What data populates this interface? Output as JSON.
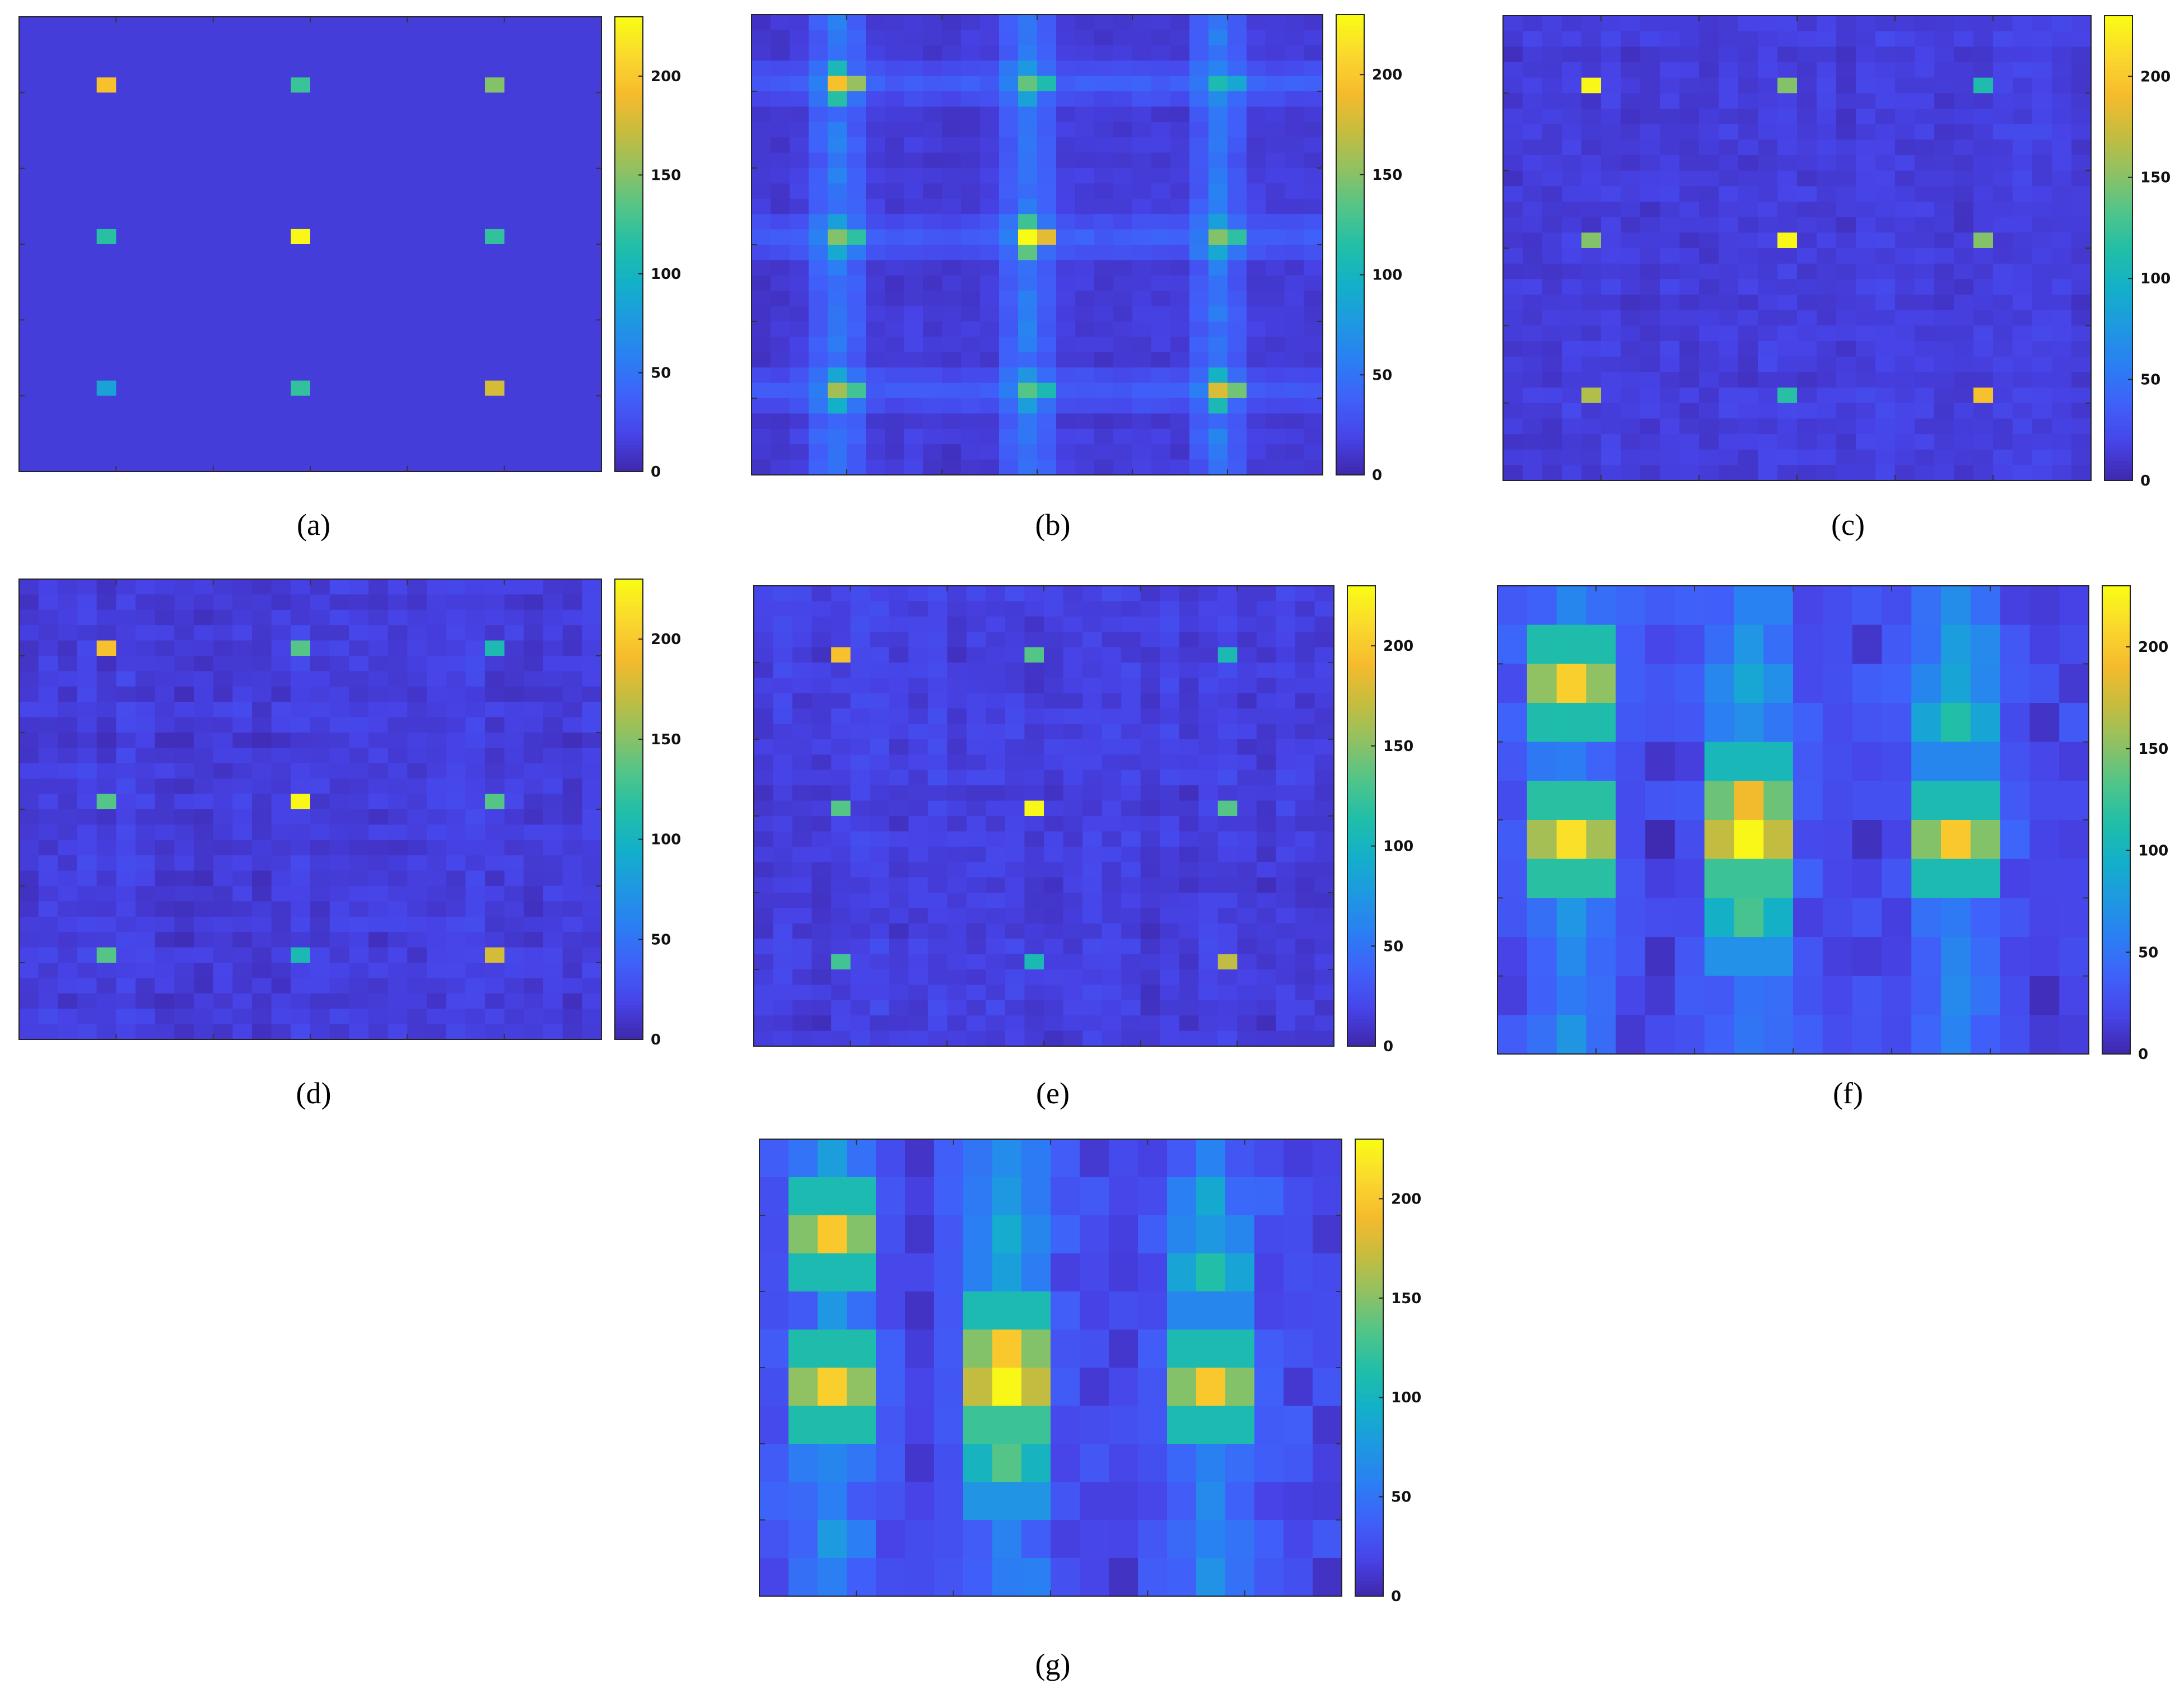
{
  "figure": {
    "colorbar_ticks": [
      "0",
      "50",
      "100",
      "150",
      "200"
    ],
    "colormap": [
      "#3e26a8",
      "#4743e7",
      "#4060fa",
      "#2b7ef3",
      "#1f98e2",
      "#13b0c9",
      "#21bea8",
      "#51c589",
      "#8fc163",
      "#c6bc3e",
      "#f6bb2d",
      "#fad82e",
      "#f9fb15"
    ]
  },
  "chart_data": [
    {
      "id": "a",
      "caption": "(a)",
      "type": "heatmap",
      "vmin": 0,
      "vmax": 230,
      "rows": 30,
      "cols": 30,
      "background": 15,
      "noise": 0,
      "structure": "none",
      "peaks": [
        [
          4,
          4,
          195
        ],
        [
          4,
          14,
          125
        ],
        [
          4,
          24,
          150
        ],
        [
          14,
          4,
          118
        ],
        [
          14,
          14,
          228
        ],
        [
          14,
          24,
          122
        ],
        [
          24,
          4,
          85
        ],
        [
          24,
          14,
          122
        ],
        [
          24,
          24,
          178
        ]
      ],
      "colorbar_ticks": [
        "0",
        "50",
        "100",
        "150",
        "200"
      ]
    },
    {
      "id": "b",
      "caption": "(b)",
      "type": "heatmap",
      "vmin": 0,
      "vmax": 230,
      "rows": 30,
      "cols": 30,
      "background": 14,
      "noise": 8,
      "structure": "cross",
      "peaks": [
        [
          4,
          4,
          195
        ],
        [
          4,
          14,
          140
        ],
        [
          4,
          24,
          110
        ],
        [
          14,
          4,
          150
        ],
        [
          14,
          14,
          230
        ],
        [
          14,
          24,
          150
        ],
        [
          24,
          4,
          160
        ],
        [
          24,
          14,
          135
        ],
        [
          24,
          24,
          180
        ]
      ],
      "colorbar_ticks": [
        "0",
        "50",
        "100",
        "150",
        "200"
      ]
    },
    {
      "id": "c",
      "caption": "(c)",
      "type": "heatmap",
      "vmin": 0,
      "vmax": 230,
      "rows": 30,
      "cols": 30,
      "background": 16,
      "noise": 10,
      "structure": "none",
      "peaks": [
        [
          4,
          4,
          228
        ],
        [
          4,
          14,
          150
        ],
        [
          4,
          24,
          112
        ],
        [
          14,
          4,
          150
        ],
        [
          14,
          14,
          228
        ],
        [
          14,
          24,
          150
        ],
        [
          24,
          4,
          165
        ],
        [
          24,
          14,
          118
        ],
        [
          24,
          24,
          195
        ]
      ],
      "colorbar_ticks": [
        "0",
        "50",
        "100",
        "150",
        "200"
      ]
    },
    {
      "id": "d",
      "caption": "(d)",
      "type": "heatmap",
      "vmin": 0,
      "vmax": 230,
      "rows": 30,
      "cols": 30,
      "background": 16,
      "noise": 12,
      "structure": "none",
      "peaks": [
        [
          4,
          4,
          195
        ],
        [
          4,
          14,
          135
        ],
        [
          4,
          24,
          110
        ],
        [
          14,
          4,
          135
        ],
        [
          14,
          14,
          228
        ],
        [
          14,
          24,
          135
        ],
        [
          24,
          4,
          135
        ],
        [
          24,
          14,
          108
        ],
        [
          24,
          24,
          178
        ]
      ],
      "colorbar_ticks": [
        "0",
        "50",
        "100",
        "150",
        "200"
      ]
    },
    {
      "id": "e",
      "caption": "(e)",
      "type": "heatmap",
      "vmin": 0,
      "vmax": 230,
      "rows": 30,
      "cols": 30,
      "background": 16,
      "noise": 12,
      "structure": "none",
      "peaks": [
        [
          4,
          4,
          195
        ],
        [
          4,
          14,
          135
        ],
        [
          4,
          24,
          108
        ],
        [
          14,
          4,
          135
        ],
        [
          14,
          14,
          228
        ],
        [
          14,
          24,
          135
        ],
        [
          24,
          4,
          128
        ],
        [
          24,
          14,
          108
        ],
        [
          24,
          24,
          170
        ]
      ],
      "colorbar_ticks": [
        "0",
        "50",
        "100",
        "150",
        "200"
      ]
    },
    {
      "id": "f",
      "caption": "(f)",
      "type": "heatmap",
      "vmin": 0,
      "vmax": 230,
      "rows": 12,
      "cols": 20,
      "background": 22,
      "noise": 14,
      "structure": "blobs",
      "peaks": [
        [
          2,
          2,
          205
        ],
        [
          6,
          2,
          215
        ],
        [
          5,
          8,
          190
        ],
        [
          6,
          8,
          228
        ],
        [
          6,
          15,
          200
        ],
        [
          8,
          8,
          130
        ],
        [
          3,
          15,
          115
        ]
      ],
      "colorbar_ticks": [
        "0",
        "50",
        "100",
        "150",
        "200"
      ]
    },
    {
      "id": "g",
      "caption": "(g)",
      "type": "heatmap",
      "vmin": 0,
      "vmax": 230,
      "rows": 12,
      "cols": 20,
      "background": 22,
      "noise": 14,
      "structure": "blobs",
      "peaks": [
        [
          2,
          2,
          200
        ],
        [
          6,
          2,
          205
        ],
        [
          5,
          8,
          200
        ],
        [
          6,
          8,
          228
        ],
        [
          6,
          15,
          200
        ],
        [
          8,
          8,
          135
        ],
        [
          3,
          15,
          115
        ]
      ],
      "colorbar_ticks": [
        "0",
        "50",
        "100",
        "150",
        "200"
      ]
    }
  ]
}
